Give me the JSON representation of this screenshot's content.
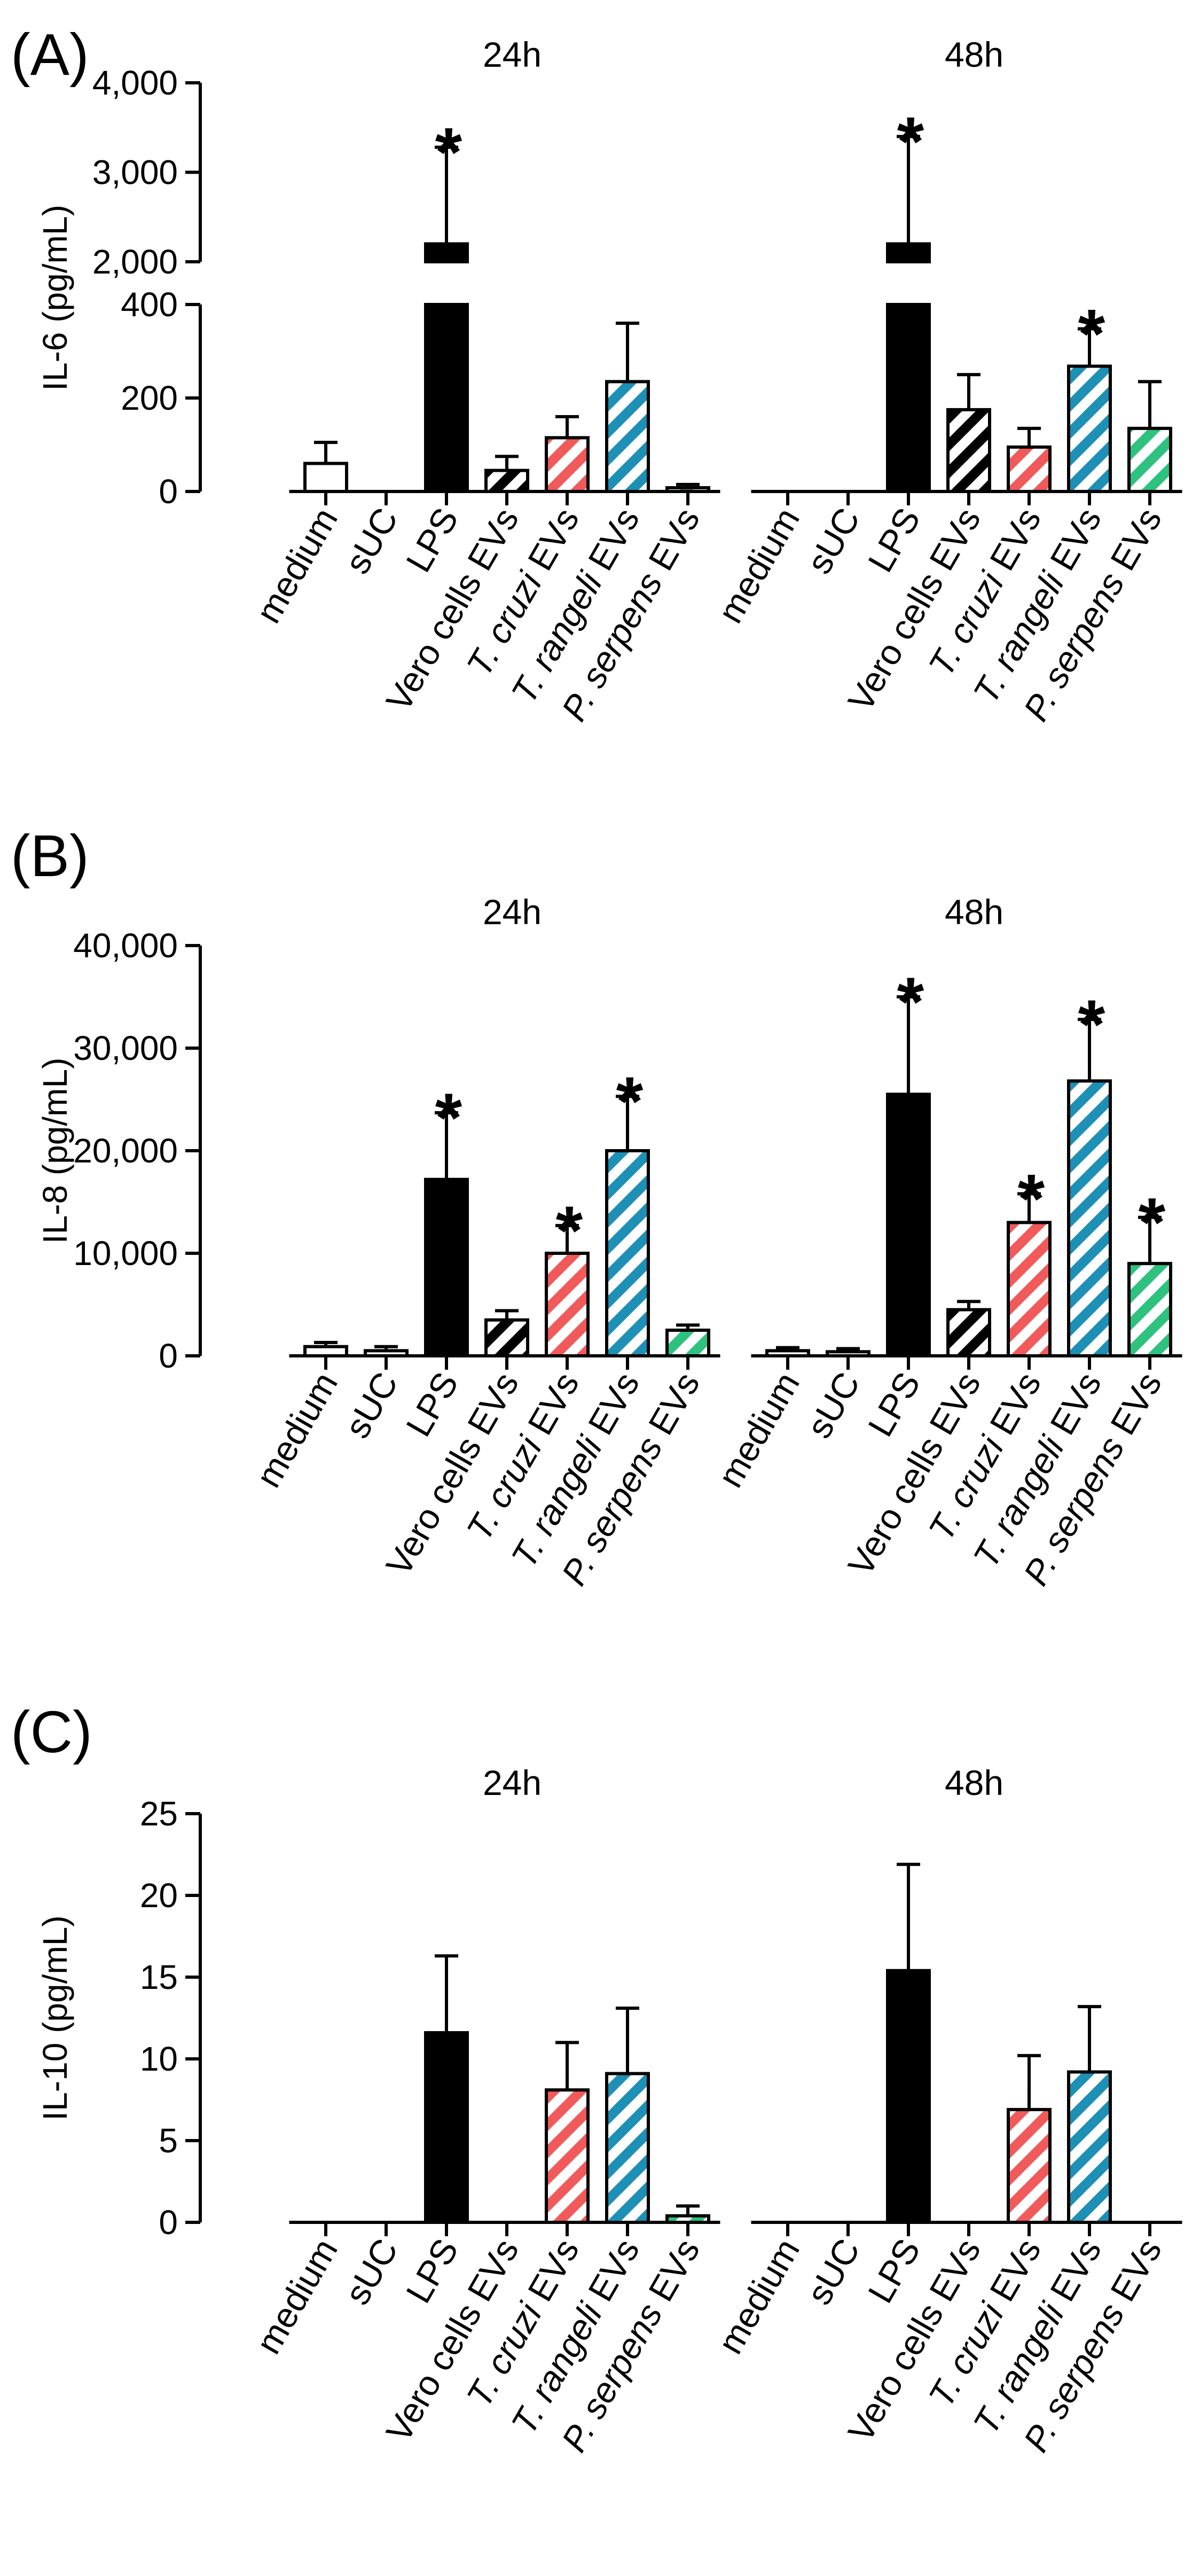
{
  "colors": {
    "medium": "#ffffff",
    "sUC": "#ffffff",
    "LPS": "#000000",
    "vero": "#000000",
    "cruzi": "#f15a5a",
    "rangeli": "#1e8fb5",
    "serpens": "#2ec27e"
  },
  "category_defs": [
    {
      "key": "medium",
      "parts": [
        {
          "t": "medium",
          "i": false
        }
      ],
      "fill": "solid",
      "color_key": "medium"
    },
    {
      "key": "sUC",
      "parts": [
        {
          "t": "sUC",
          "i": false
        }
      ],
      "fill": "solid",
      "color_key": "sUC"
    },
    {
      "key": "LPS",
      "parts": [
        {
          "t": "LPS",
          "i": false
        }
      ],
      "fill": "solid",
      "color_key": "LPS"
    },
    {
      "key": "vero",
      "parts": [
        {
          "t": "Vero cells EVs",
          "i": false
        }
      ],
      "fill": "hatch",
      "color_key": "vero"
    },
    {
      "key": "cruzi",
      "parts": [
        {
          "t": "T. cruzi",
          "i": true
        },
        {
          "t": " EVs",
          "i": false
        }
      ],
      "fill": "hatch",
      "color_key": "cruzi"
    },
    {
      "key": "rangeli",
      "parts": [
        {
          "t": "T. rangeli",
          "i": true
        },
        {
          "t": " EVs",
          "i": false
        }
      ],
      "fill": "hatch",
      "color_key": "rangeli"
    },
    {
      "key": "serpens",
      "parts": [
        {
          "t": "P. serpens",
          "i": true
        },
        {
          "t": " EVs",
          "i": false
        }
      ],
      "fill": "hatch",
      "color_key": "serpens"
    }
  ],
  "chart_data": [
    {
      "type": "bar",
      "panel": "(A)",
      "ylabel": "IL-6 (pg/mL)",
      "axis_break": {
        "lower": [
          0,
          400
        ],
        "upper": [
          2000,
          4000
        ]
      },
      "ticks": [
        {
          "v": 0,
          "label": "0"
        },
        {
          "v": 200,
          "label": "200"
        },
        {
          "v": 400,
          "label": "400"
        },
        {
          "v": 2000,
          "label": "2,000"
        },
        {
          "v": 3000,
          "label": "3,000"
        },
        {
          "v": 4000,
          "label": "4,000"
        }
      ],
      "groups": [
        {
          "label": "24h",
          "categories": [
            "medium",
            "sUC",
            "LPS",
            "Vero cells EVs",
            "T. cruzi EVs",
            "T. rangeli EVs",
            "P. serpens EVs"
          ],
          "values": [
            60,
            0,
            2200,
            45,
            115,
            235,
            8
          ],
          "errors": [
            45,
            0,
            1080,
            30,
            45,
            125,
            7
          ],
          "significant": [
            false,
            false,
            true,
            false,
            false,
            false,
            false
          ]
        },
        {
          "label": "48h",
          "categories": [
            "medium",
            "sUC",
            "LPS",
            "Vero cells EVs",
            "T. cruzi EVs",
            "T. rangeli EVs",
            "P. serpens EVs"
          ],
          "values": [
            0,
            0,
            2200,
            175,
            95,
            268,
            135
          ],
          "errors": [
            0,
            0,
            1200,
            75,
            40,
            80,
            100
          ],
          "significant": [
            false,
            false,
            true,
            false,
            false,
            true,
            false
          ]
        }
      ]
    },
    {
      "type": "bar",
      "panel": "(B)",
      "ylabel": "IL-8 (pg/mL)",
      "ylim": [
        0,
        40000
      ],
      "ticks": [
        {
          "v": 0,
          "label": "0"
        },
        {
          "v": 10000,
          "label": "10,000"
        },
        {
          "v": 20000,
          "label": "20,000"
        },
        {
          "v": 30000,
          "label": "30,000"
        },
        {
          "v": 40000,
          "label": "40,000"
        }
      ],
      "groups": [
        {
          "label": "24h",
          "categories": [
            "medium",
            "sUC",
            "LPS",
            "Vero cells EVs",
            "T. cruzi EVs",
            "T. rangeli EVs",
            "P. serpens EVs"
          ],
          "values": [
            900,
            500,
            17200,
            3500,
            10000,
            20000,
            2500
          ],
          "errors": [
            400,
            400,
            6500,
            900,
            2700,
            5300,
            500
          ],
          "significant": [
            false,
            false,
            true,
            false,
            true,
            true,
            false
          ]
        },
        {
          "label": "48h",
          "categories": [
            "medium",
            "sUC",
            "LPS",
            "Vero cells EVs",
            "T. cruzi EVs",
            "T. rangeli EVs",
            "P. serpens EVs"
          ],
          "values": [
            500,
            400,
            25500,
            4500,
            13000,
            26800,
            9000
          ],
          "errors": [
            300,
            300,
            9500,
            800,
            2800,
            6000,
            4500
          ],
          "significant": [
            false,
            false,
            true,
            false,
            true,
            true,
            true
          ]
        }
      ]
    },
    {
      "type": "bar",
      "panel": "(C)",
      "ylabel": "IL-10 (pg/mL)",
      "ylim": [
        0,
        25
      ],
      "ticks": [
        {
          "v": 0,
          "label": "0"
        },
        {
          "v": 5,
          "label": "5"
        },
        {
          "v": 10,
          "label": "10"
        },
        {
          "v": 15,
          "label": "15"
        },
        {
          "v": 20,
          "label": "20"
        },
        {
          "v": 25,
          "label": "25"
        }
      ],
      "groups": [
        {
          "label": "24h",
          "categories": [
            "medium",
            "sUC",
            "LPS",
            "Vero cells EVs",
            "T. cruzi EVs",
            "T. rangeli EVs",
            "P. serpens EVs"
          ],
          "values": [
            0,
            0,
            11.6,
            0,
            8.1,
            9.1,
            0.4
          ],
          "errors": [
            0,
            0,
            4.7,
            0,
            2.9,
            4.0,
            0.6
          ],
          "significant": [
            false,
            false,
            false,
            false,
            false,
            false,
            false
          ]
        },
        {
          "label": "48h",
          "categories": [
            "medium",
            "sUC",
            "LPS",
            "Vero cells EVs",
            "T. cruzi EVs",
            "T. rangeli EVs",
            "P. serpens EVs"
          ],
          "values": [
            0,
            0,
            15.4,
            0,
            6.9,
            9.2,
            0
          ],
          "errors": [
            0,
            0,
            6.5,
            0,
            3.3,
            4.0,
            0
          ],
          "significant": [
            false,
            false,
            false,
            false,
            false,
            false,
            false
          ]
        }
      ]
    }
  ]
}
